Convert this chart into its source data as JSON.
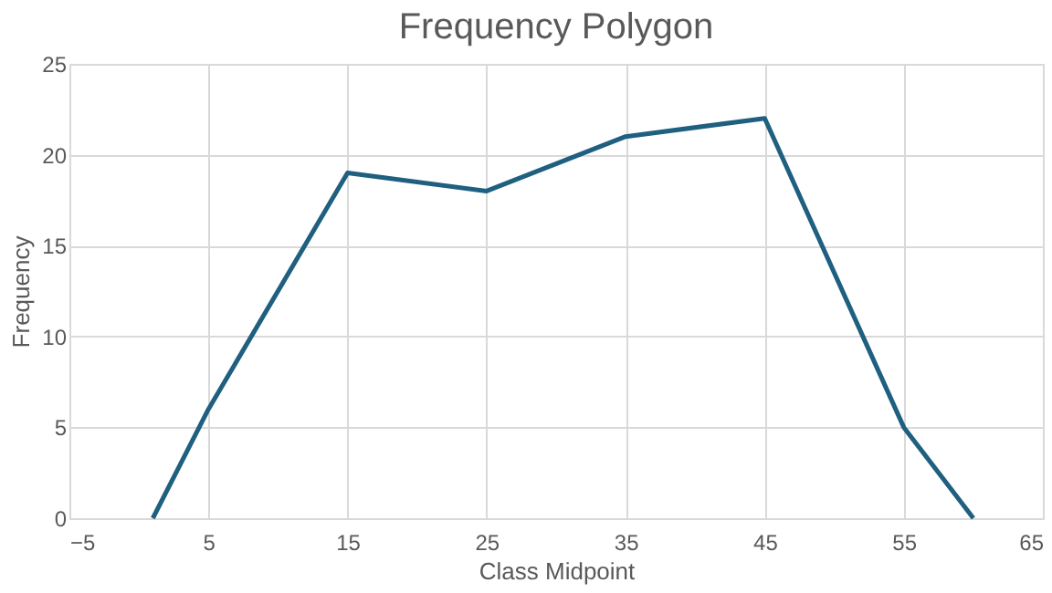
{
  "chart_data": {
    "type": "line",
    "title": "Frequency Polygon",
    "xlabel": "Class Midpoint",
    "ylabel": "Frequency",
    "x": [
      1,
      5,
      15,
      25,
      35,
      45,
      55,
      60
    ],
    "series": [
      {
        "color": "#1f5f7f",
        "values": [
          0,
          6,
          19,
          18,
          21,
          22,
          5,
          0
        ]
      }
    ],
    "xlim": [
      -5,
      65
    ],
    "xticks": [
      -5,
      5,
      15,
      25,
      35,
      45,
      55,
      65
    ],
    "ylim": [
      0,
      25
    ],
    "yticks": [
      0,
      5,
      10,
      15,
      20,
      25
    ],
    "grid": true,
    "marker": "none",
    "line_style": "solid"
  }
}
